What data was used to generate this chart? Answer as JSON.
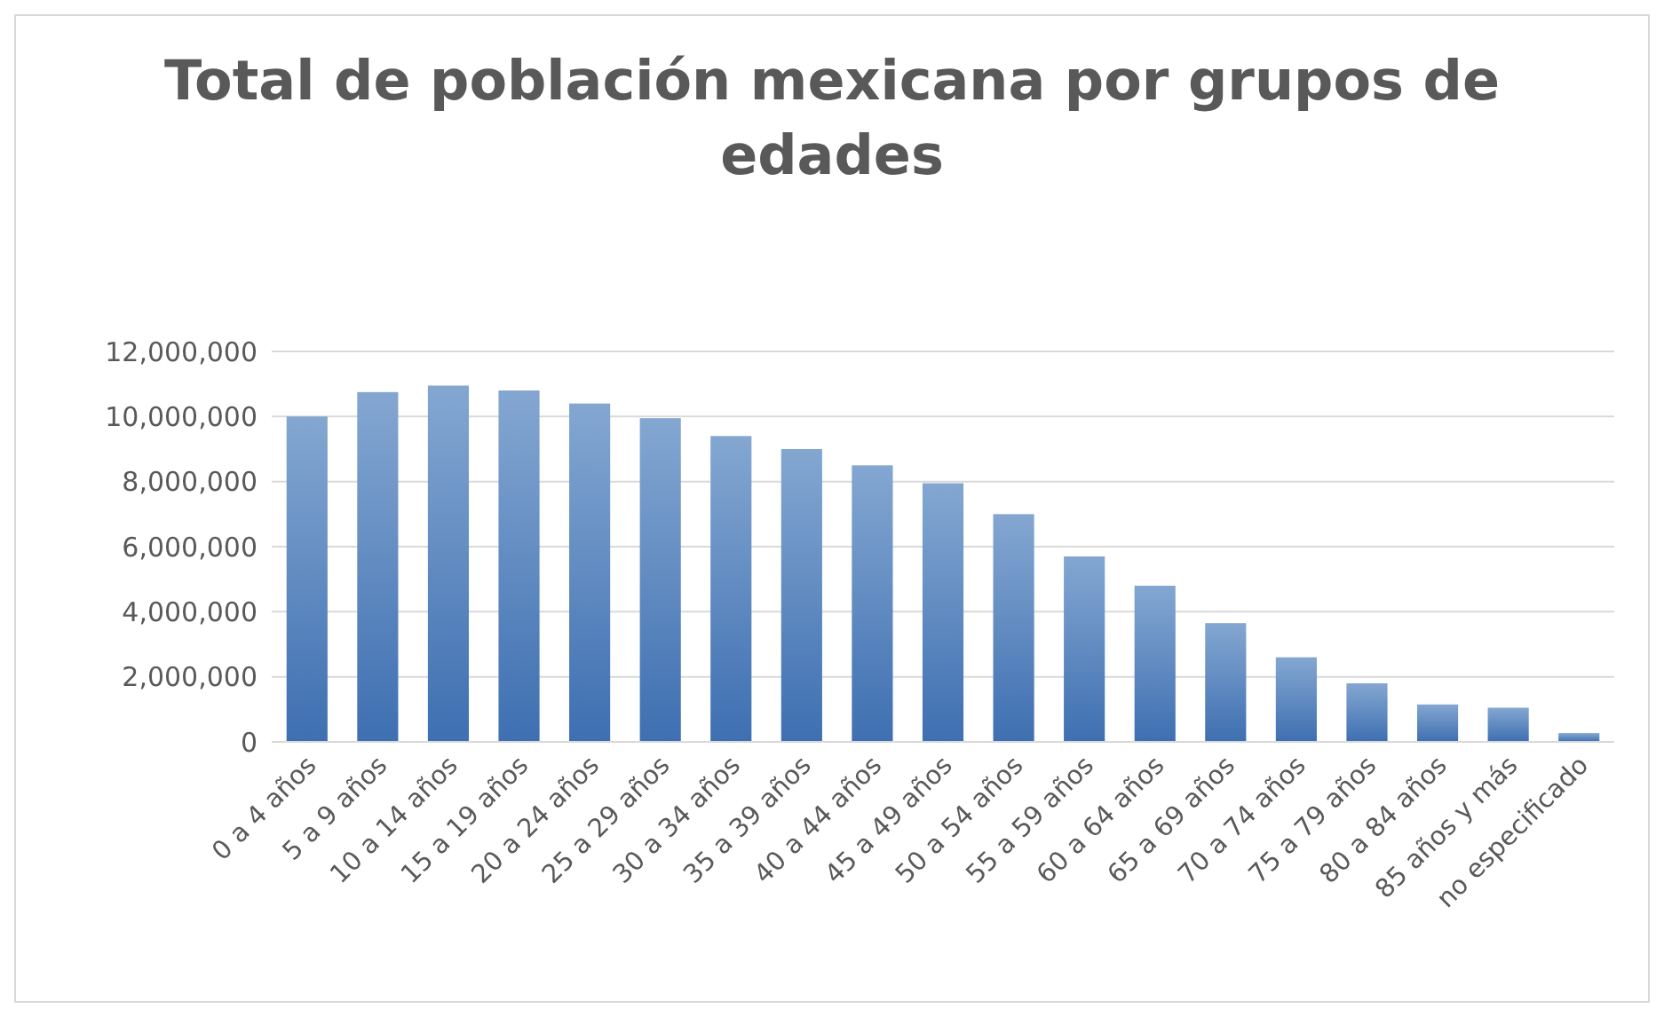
{
  "chart_data": {
    "type": "bar",
    "title": "Total de población mexicana por grupos de edades",
    "categories": [
      "0 a 4 años",
      "5 a 9 años",
      "10 a 14 años",
      "15 a 19 años",
      "20 a 24 años",
      "25 a 29 años",
      "30 a 34 años",
      "35 a 39 años",
      "40 a 44 años",
      "45 a 49 años",
      "50 a 54 años",
      "55 a 59 años",
      "60 a 64 años",
      "65 a 69 años",
      "70 a 74 años",
      "75 a 79 años",
      "80 a 84 años",
      "85 años y más",
      "no especificado"
    ],
    "values": [
      10000000,
      10750000,
      10950000,
      10800000,
      10400000,
      9950000,
      9400000,
      9000000,
      8500000,
      7950000,
      7000000,
      5700000,
      4800000,
      3650000,
      2600000,
      1800000,
      1150000,
      1050000,
      270000
    ],
    "color": "#4f81bd",
    "ylim": [
      0,
      12000000
    ],
    "yticks": [
      {
        "value": 0,
        "label": "0"
      },
      {
        "value": 2000000,
        "label": "2,000,000"
      },
      {
        "value": 4000000,
        "label": "4,000,000"
      },
      {
        "value": 6000000,
        "label": "6,000,000"
      },
      {
        "value": 8000000,
        "label": "8,000,000"
      },
      {
        "value": 10000000,
        "label": "10,000,000"
      },
      {
        "value": 12000000,
        "label": "12,000,000"
      }
    ],
    "grid": "y"
  }
}
